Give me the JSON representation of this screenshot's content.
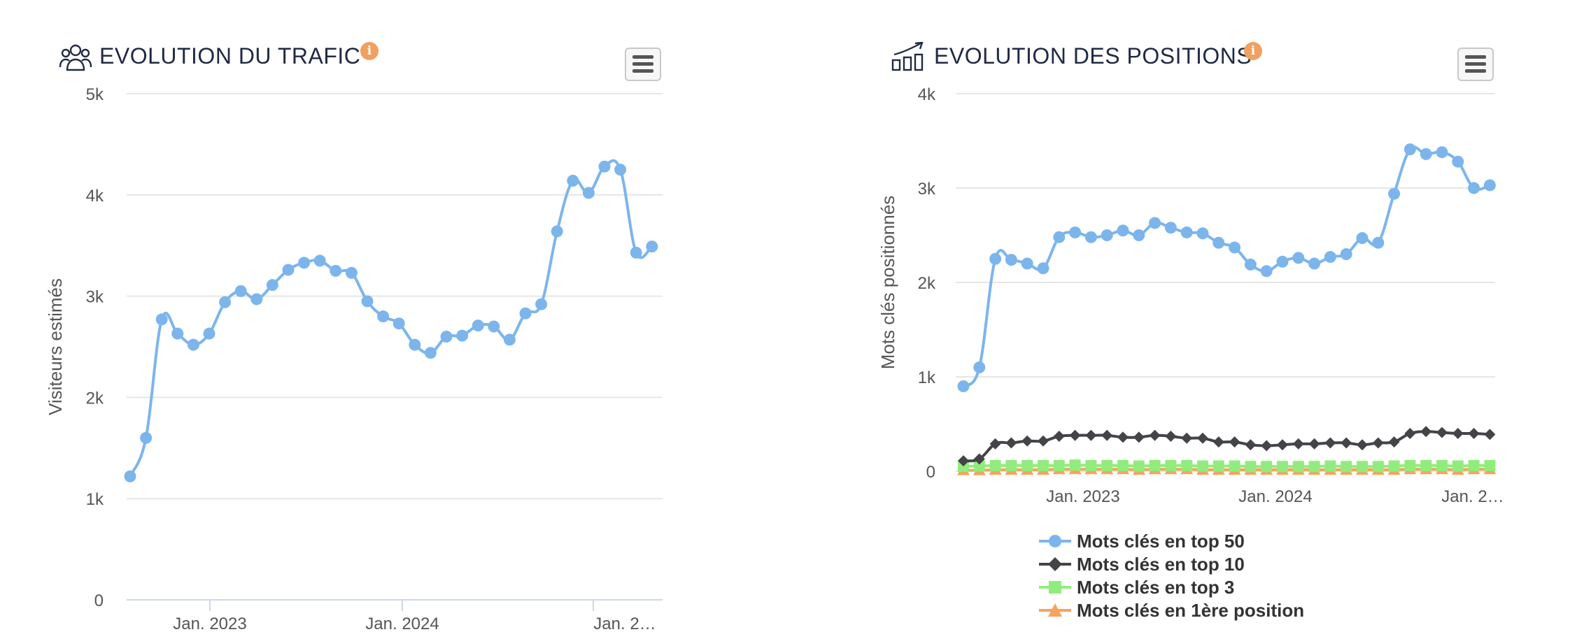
{
  "traffic_panel": {
    "title": "EVOLUTION DU TRAFIC",
    "icon": "users-group-icon",
    "info_icon": "info-icon",
    "menu_icon": "hamburger-menu-icon"
  },
  "positions_panel": {
    "title": "EVOLUTION DES POSITIONS",
    "icon": "growth-bars-icon",
    "info_icon": "info-icon",
    "menu_icon": "hamburger-menu-icon"
  },
  "colors": {
    "top50": "#7cb5ec",
    "top10": "#434348",
    "top3": "#90ed7d",
    "first": "#f7a35c",
    "grid": "#e6e6e6",
    "axis": "#ccd6eb",
    "info_badge": "#f0a060"
  },
  "chart_data": [
    {
      "type": "line",
      "ylabel": "Visiteurs estimés",
      "ylim": [
        0,
        5000
      ],
      "y_ticks": [
        "0",
        "1k",
        "2k",
        "3k",
        "4k",
        "5k"
      ],
      "x_ticks": [
        "Jan. 2023",
        "Jan. 2024",
        "Jan. 2…"
      ],
      "grid": true,
      "series": [
        {
          "values": [
            1220,
            1600,
            2770,
            2630,
            2520,
            2630,
            2940,
            3050,
            2970,
            3110,
            3260,
            3330,
            3350,
            3250,
            3230,
            2950,
            2800,
            2730,
            2520,
            2440,
            2600,
            2610,
            2710,
            2700,
            2570,
            2830,
            2920,
            3640,
            4140,
            4020,
            4280,
            4250,
            3430,
            3490
          ]
        }
      ]
    },
    {
      "type": "line",
      "ylabel": "Mots clés positionnés",
      "ylim": [
        0,
        4000
      ],
      "y_ticks": [
        "0",
        "1k",
        "2k",
        "3k",
        "4k"
      ],
      "x_ticks": [
        "Jan. 2023",
        "Jan. 2024",
        "Jan. 2…"
      ],
      "grid": true,
      "legend_position": "bottom",
      "series": [
        {
          "name": "Mots clés en top 50",
          "values": [
            900,
            1100,
            2250,
            2240,
            2200,
            2150,
            2480,
            2530,
            2480,
            2500,
            2550,
            2500,
            2630,
            2580,
            2530,
            2520,
            2420,
            2370,
            2190,
            2120,
            2220,
            2260,
            2200,
            2270,
            2300,
            2470,
            2420,
            2940,
            3410,
            3360,
            3380,
            3280,
            3000,
            3030
          ]
        },
        {
          "name": "Mots clés en top 10",
          "values": [
            110,
            130,
            290,
            300,
            320,
            320,
            370,
            380,
            380,
            380,
            360,
            360,
            380,
            370,
            350,
            350,
            310,
            310,
            280,
            270,
            280,
            290,
            290,
            300,
            300,
            280,
            300,
            310,
            400,
            420,
            410,
            400,
            400,
            390
          ]
        },
        {
          "name": "Mots clés en top 3",
          "values": [
            50,
            55,
            60,
            60,
            60,
            60,
            60,
            65,
            60,
            60,
            60,
            55,
            60,
            60,
            60,
            55,
            55,
            55,
            50,
            50,
            50,
            50,
            50,
            55,
            50,
            50,
            50,
            55,
            60,
            60,
            60,
            55,
            60,
            60
          ]
        },
        {
          "name": "Mots clés en 1ère position",
          "values": [
            10,
            10,
            15,
            15,
            15,
            15,
            20,
            20,
            20,
            20,
            20,
            15,
            20,
            20,
            20,
            15,
            15,
            15,
            15,
            15,
            15,
            15,
            15,
            15,
            15,
            15,
            15,
            15,
            20,
            20,
            20,
            15,
            20,
            20
          ]
        }
      ]
    }
  ]
}
